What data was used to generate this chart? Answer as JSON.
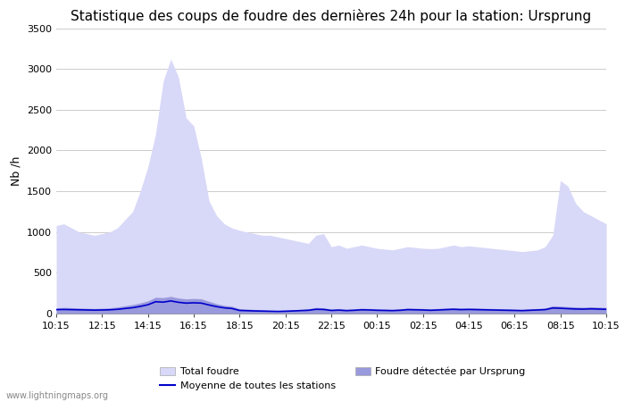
{
  "title": "Statistique des coups de foudre des dernières 24h pour la station: Ursprung",
  "ylabel": "Nb /h",
  "watermark": "www.lightningmaps.org",
  "ylim": [
    0,
    3500
  ],
  "yticks": [
    0,
    500,
    1000,
    1500,
    2000,
    2500,
    3000,
    3500
  ],
  "xtick_labels": [
    "10:15",
    "12:15",
    "14:15",
    "16:15",
    "18:15",
    "20:15",
    "22:15",
    "00:15",
    "02:15",
    "04:15",
    "06:15",
    "08:15",
    "10:15"
  ],
  "total_foudre_color": "#d8d8f8",
  "detected_color": "#9999dd",
  "moyenne_color": "#0000cc",
  "background_color": "#ffffff",
  "grid_color": "#cccccc",
  "title_fontsize": 11,
  "axis_fontsize": 9,
  "tick_fontsize": 8,
  "total_foudre": [
    1080,
    1100,
    1050,
    1000,
    980,
    960,
    980,
    1000,
    1050,
    1150,
    1250,
    1500,
    1800,
    2200,
    2850,
    3120,
    2900,
    2400,
    2300,
    1900,
    1380,
    1200,
    1100,
    1050,
    1020,
    1000,
    980,
    960,
    960,
    940,
    920,
    900,
    880,
    860,
    960,
    980,
    820,
    840,
    800,
    820,
    840,
    820,
    800,
    790,
    780,
    800,
    820,
    810,
    800,
    795,
    800,
    820,
    840,
    820,
    830,
    820,
    810,
    800,
    790,
    780,
    770,
    760,
    770,
    780,
    820,
    960,
    1630,
    1560,
    1350,
    1250,
    1200,
    1150,
    1100
  ],
  "detected": [
    70,
    75,
    72,
    68,
    65,
    62,
    65,
    70,
    80,
    95,
    110,
    130,
    155,
    200,
    195,
    210,
    190,
    180,
    185,
    180,
    150,
    120,
    100,
    90,
    60,
    55,
    50,
    45,
    40,
    38,
    42,
    48,
    52,
    58,
    75,
    70,
    55,
    60,
    52,
    58,
    65,
    62,
    58,
    55,
    52,
    58,
    68,
    65,
    62,
    58,
    62,
    68,
    72,
    68,
    70,
    68,
    65,
    62,
    60,
    58,
    55,
    52,
    58,
    62,
    68,
    95,
    90,
    85,
    80,
    78,
    82,
    78,
    75
  ],
  "moyenne": [
    48,
    50,
    48,
    46,
    44,
    42,
    44,
    46,
    52,
    62,
    72,
    88,
    108,
    145,
    140,
    155,
    138,
    128,
    132,
    128,
    105,
    85,
    70,
    62,
    38,
    35,
    32,
    30,
    28,
    26,
    28,
    32,
    36,
    40,
    52,
    50,
    38,
    42,
    36,
    40,
    46,
    44,
    40,
    38,
    36,
    40,
    48,
    46,
    44,
    40,
    44,
    48,
    52,
    48,
    50,
    48,
    46,
    44,
    42,
    40,
    38,
    36,
    40,
    44,
    48,
    68,
    65,
    60,
    56,
    54,
    58,
    55,
    52
  ]
}
